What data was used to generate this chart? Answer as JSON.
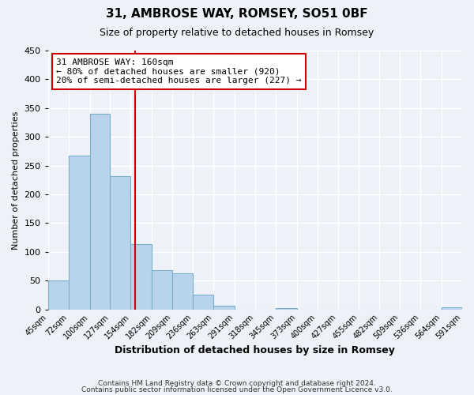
{
  "title": "31, AMBROSE WAY, ROMSEY, SO51 0BF",
  "subtitle": "Size of property relative to detached houses in Romsey",
  "xlabel": "Distribution of detached houses by size in Romsey",
  "ylabel": "Number of detached properties",
  "bin_edges": [
    45,
    72,
    100,
    127,
    154,
    182,
    209,
    236,
    263,
    291,
    318,
    345,
    373,
    400,
    427,
    455,
    482,
    509,
    536,
    564,
    591
  ],
  "bin_labels": [
    "45sqm",
    "72sqm",
    "100sqm",
    "127sqm",
    "154sqm",
    "182sqm",
    "209sqm",
    "236sqm",
    "263sqm",
    "291sqm",
    "318sqm",
    "345sqm",
    "373sqm",
    "400sqm",
    "427sqm",
    "455sqm",
    "482sqm",
    "509sqm",
    "536sqm",
    "564sqm",
    "591sqm"
  ],
  "bar_heights": [
    50,
    268,
    340,
    232,
    114,
    68,
    63,
    25,
    7,
    0,
    0,
    2,
    0,
    0,
    0,
    0,
    0,
    0,
    0,
    3
  ],
  "bar_color": "#b8d4ed",
  "bar_edge_color": "#7aaec8",
  "property_line_x": 160,
  "property_line_color": "#cc0000",
  "annotation_title": "31 AMBROSE WAY: 160sqm",
  "annotation_line1": "← 80% of detached houses are smaller (920)",
  "annotation_line2": "20% of semi-detached houses are larger (227) →",
  "ylim": [
    0,
    450
  ],
  "yticks": [
    0,
    50,
    100,
    150,
    200,
    250,
    300,
    350,
    400,
    450
  ],
  "background_color": "#eef2f8",
  "grid_color": "#ffffff",
  "footer_line1": "Contains HM Land Registry data © Crown copyright and database right 2024.",
  "footer_line2": "Contains public sector information licensed under the Open Government Licence v3.0."
}
